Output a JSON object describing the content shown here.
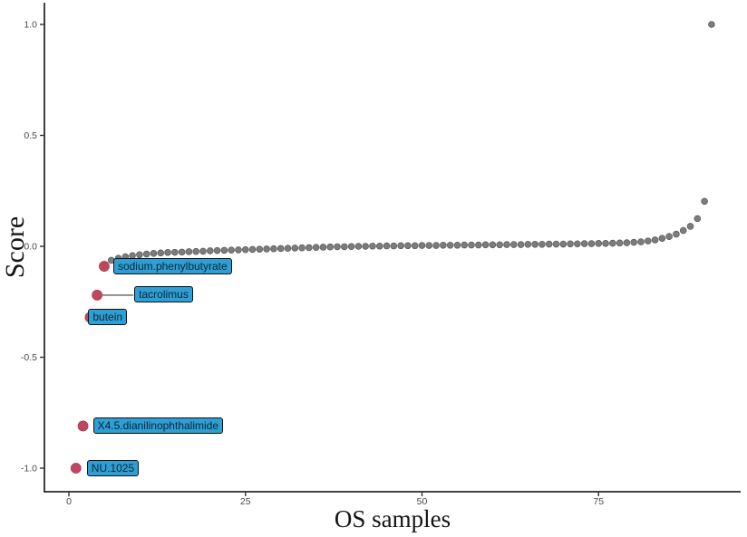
{
  "chart_data": {
    "type": "scatter",
    "title": "",
    "xlabel": "OS samples",
    "ylabel": "Score",
    "grid": false,
    "legend": "none",
    "x_axis": {
      "range": [
        -3.5,
        95
      ],
      "ticks": [
        0,
        25,
        50,
        75
      ],
      "tick_labels": [
        "0",
        "25",
        "50",
        "75"
      ]
    },
    "y_axis": {
      "range": [
        -1.1,
        1.1
      ],
      "ticks": [
        1.0,
        0.5,
        0.0,
        -0.5,
        -1.0
      ],
      "tick_labels": [
        "1.0",
        "0.5",
        "0.0",
        "-0.5",
        "-1.0"
      ]
    },
    "series": [
      {
        "name": "unlabeled-samples",
        "color": "#7c7c7c",
        "stroke": "#5e5e5e",
        "radius": 3.4,
        "points": [
          [
            6,
            -0.063
          ],
          [
            7,
            -0.054
          ],
          [
            8,
            -0.047
          ],
          [
            9,
            -0.042
          ],
          [
            10,
            -0.038
          ],
          [
            11,
            -0.035
          ],
          [
            12,
            -0.032
          ],
          [
            13,
            -0.03
          ],
          [
            14,
            -0.028
          ],
          [
            15,
            -0.027
          ],
          [
            16,
            -0.026
          ],
          [
            17,
            -0.024
          ],
          [
            18,
            -0.023
          ],
          [
            19,
            -0.022
          ],
          [
            20,
            -0.02
          ],
          [
            21,
            -0.019
          ],
          [
            22,
            -0.018
          ],
          [
            23,
            -0.017
          ],
          [
            24,
            -0.016
          ],
          [
            25,
            -0.015
          ],
          [
            26,
            -0.014
          ],
          [
            27,
            -0.013
          ],
          [
            28,
            -0.012
          ],
          [
            29,
            -0.011
          ],
          [
            30,
            -0.01
          ],
          [
            31,
            -0.009
          ],
          [
            32,
            -0.008
          ],
          [
            33,
            -0.007
          ],
          [
            34,
            -0.006
          ],
          [
            35,
            -0.005
          ],
          [
            36,
            -0.004
          ],
          [
            37,
            -0.003
          ],
          [
            38,
            -0.002
          ],
          [
            39,
            -0.002
          ],
          [
            40,
            -0.001
          ],
          [
            41,
            0.0
          ],
          [
            42,
            0.0
          ],
          [
            43,
            0.001
          ],
          [
            44,
            0.001
          ],
          [
            45,
            0.002
          ],
          [
            46,
            0.002
          ],
          [
            47,
            0.003
          ],
          [
            48,
            0.003
          ],
          [
            49,
            0.003
          ],
          [
            50,
            0.004
          ],
          [
            51,
            0.004
          ],
          [
            52,
            0.004
          ],
          [
            53,
            0.005
          ],
          [
            54,
            0.005
          ],
          [
            55,
            0.005
          ],
          [
            56,
            0.006
          ],
          [
            57,
            0.006
          ],
          [
            58,
            0.006
          ],
          [
            59,
            0.007
          ],
          [
            60,
            0.007
          ],
          [
            61,
            0.007
          ],
          [
            62,
            0.008
          ],
          [
            63,
            0.008
          ],
          [
            64,
            0.008
          ],
          [
            65,
            0.009
          ],
          [
            66,
            0.009
          ],
          [
            67,
            0.009
          ],
          [
            68,
            0.01
          ],
          [
            69,
            0.01
          ],
          [
            70,
            0.01
          ],
          [
            71,
            0.011
          ],
          [
            72,
            0.011
          ],
          [
            73,
            0.012
          ],
          [
            74,
            0.012
          ],
          [
            75,
            0.013
          ],
          [
            76,
            0.013
          ],
          [
            77,
            0.014
          ],
          [
            78,
            0.015
          ],
          [
            79,
            0.016
          ],
          [
            80,
            0.018
          ],
          [
            81,
            0.02
          ],
          [
            82,
            0.024
          ],
          [
            83,
            0.029
          ],
          [
            84,
            0.036
          ],
          [
            85,
            0.044
          ],
          [
            86,
            0.055
          ],
          [
            87,
            0.071
          ],
          [
            88,
            0.09
          ],
          [
            89,
            0.125
          ],
          [
            90,
            0.203
          ],
          [
            91,
            1.0
          ]
        ]
      },
      {
        "name": "highlighted-drugs",
        "color": "#c1455c",
        "stroke": "#a93a50",
        "radius": 5.5,
        "points": [
          [
            1,
            -1.0
          ],
          [
            2,
            -0.81
          ],
          [
            3,
            -0.32
          ],
          [
            4,
            -0.22
          ],
          [
            5,
            -0.09
          ]
        ]
      }
    ],
    "annotations": [
      {
        "text": "sodium.phenylbutyrate",
        "sample": 5,
        "score": -0.09,
        "dx": 10,
        "leader": false
      },
      {
        "text": "tacrolimus",
        "sample": 4,
        "score": -0.22,
        "dx": 41,
        "leader": true
      },
      {
        "text": "butein",
        "sample": 3,
        "score": -0.32,
        "dx": -2,
        "leader": false
      },
      {
        "text": "X4.5.dianilinophthalimide",
        "sample": 2,
        "score": -0.81,
        "dx": 11,
        "leader": false
      },
      {
        "text": "NU.1025",
        "sample": 1,
        "score": -1.0,
        "dx": 12,
        "leader": false
      }
    ],
    "annotation_style": {
      "fill": "#2d9fd4",
      "border": "#111111",
      "text_color": "#0e2433",
      "leader_color": "#7a7a7a"
    }
  },
  "colors": {
    "background": "#ffffff",
    "axis": "#2a2a2a",
    "tick": "#333333",
    "tick_text": "#4a4a4a"
  }
}
